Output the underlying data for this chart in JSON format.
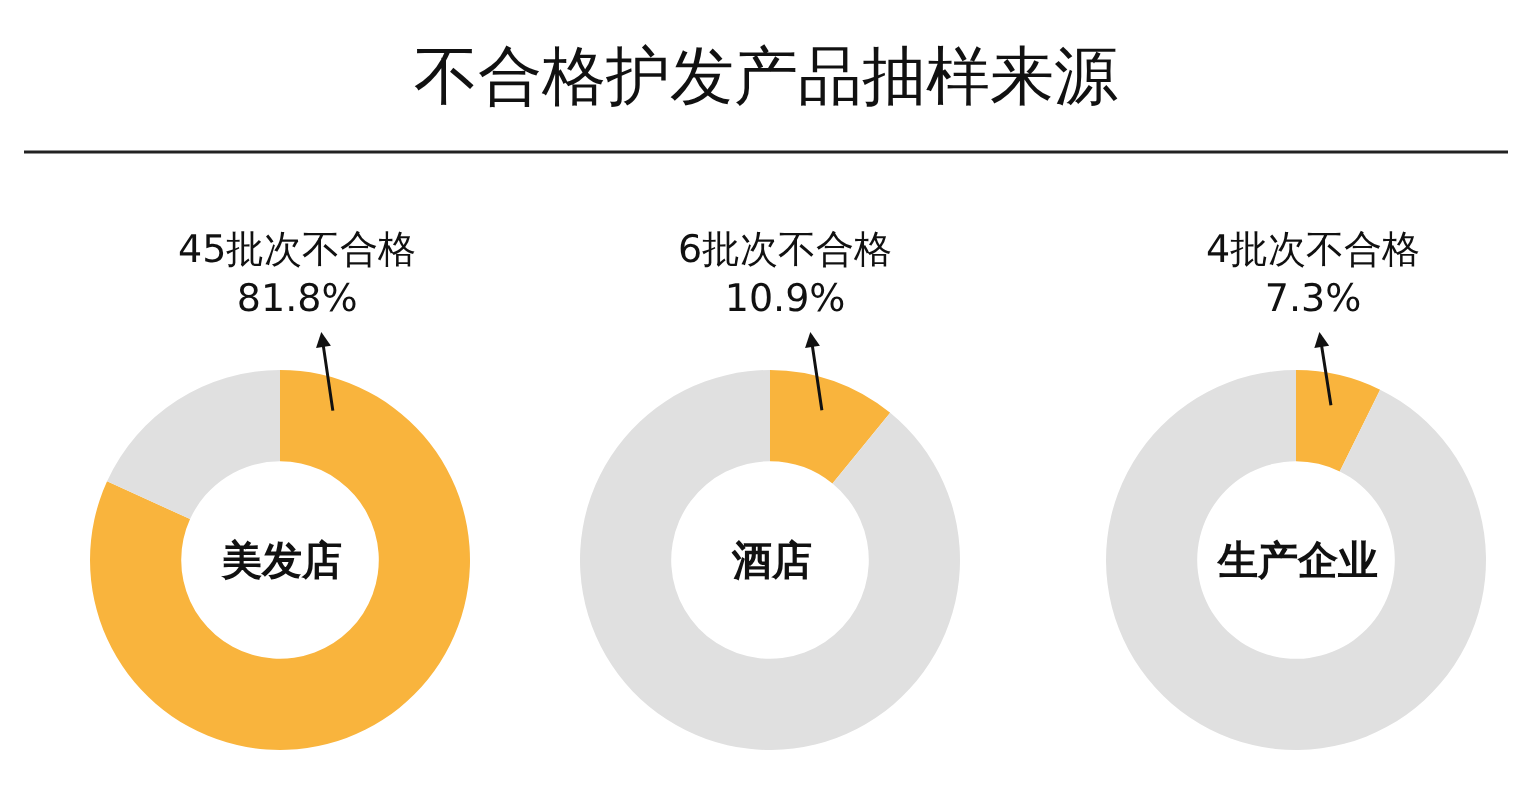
{
  "chart_data": [
    {
      "type": "other",
      "title": "不合格护发产品抽样来源"
    },
    {
      "type": "donut",
      "title": "美发店",
      "categories": [
        null,
        null
      ],
      "values": [
        81.8,
        18.2
      ],
      "colors": [
        "#f9b43d",
        "#e0e0e0"
      ],
      "annotations": [
        "45批次不合格",
        "81.8%"
      ]
    },
    {
      "type": "donut",
      "title": "酒店",
      "categories": [
        null,
        null
      ],
      "values": [
        10.9,
        89.1
      ],
      "colors": [
        "#f9b43d",
        "#e0e0e0"
      ],
      "annotations": [
        "6批次不合格",
        "10.9%"
      ]
    },
    {
      "type": "donut",
      "title": "生产企业",
      "categories": [
        null,
        null
      ],
      "values": [
        7.3,
        92.7
      ],
      "colors": [
        "#f9b43d",
        "#e0e0e0"
      ],
      "annotations": [
        "4批次不合格",
        "7.3%"
      ]
    }
  ]
}
